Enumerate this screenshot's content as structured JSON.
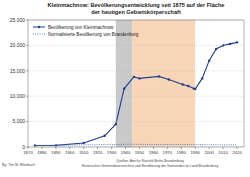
{
  "chart_data": {
    "type": "line",
    "title": "Kleinmachnow: Bevölkerungsentwicklung seit 1875 auf der Fläche",
    "subtitle": "der heutigen Gebietskörperschaft",
    "x": [
      1875,
      1890,
      1910,
      1925,
      1933,
      1939,
      1946,
      1950,
      1964,
      1971,
      1981,
      1985,
      1989,
      1990,
      1995,
      2000,
      2005,
      2010,
      2015,
      2020
    ],
    "series": [
      {
        "name": "Bevölkerung von Kleinmachnow",
        "color": "#1c3f94",
        "marker": "circle",
        "line_style": "solid",
        "values": [
          310,
          320,
          800,
          2200,
          4500,
          11500,
          13800,
          13500,
          13900,
          13300,
          12300,
          12000,
          11500,
          11400,
          13500,
          17000,
          19300,
          20000,
          20300,
          20600
        ]
      },
      {
        "name": "Normalisierte Bevölkerung von Brandenburg",
        "color": "#5a7fc0",
        "marker": "none",
        "line_style": "dotted",
        "values": [
          310,
          350,
          420,
          460,
          480,
          520,
          560,
          520,
          490,
          490,
          490,
          490,
          480,
          470,
          460,
          450,
          440,
          430,
          420,
          420
        ]
      }
    ],
    "periods": [
      {
        "from": 1933,
        "to": 1945,
        "color": "#c9c9c9"
      },
      {
        "from": 1945,
        "to": 1990,
        "color": "#f9d5b8"
      }
    ],
    "xlim": [
      1870,
      2025
    ],
    "xticks": [
      1870,
      1880,
      1890,
      1900,
      1910,
      1920,
      1930,
      1940,
      1950,
      1960,
      1970,
      1980,
      1990,
      2000,
      2010,
      2020
    ],
    "ylim": [
      0,
      25000
    ],
    "yticks": [
      0,
      {
        "value": 5000,
        "label": "5,000"
      },
      {
        "value": 10000,
        "label": "10,000"
      },
      {
        "value": 15000,
        "label": "15,000"
      },
      {
        "value": 20000,
        "label": "20,000"
      },
      {
        "value": 25000,
        "label": "25,000"
      }
    ],
    "grid": true,
    "legend": "upper-left",
    "author": "By: Tim M. Ellerbach",
    "source_lines": [
      "Quellen: Amt für Statistik Berlin-Brandenburg",
      "Historisches Gemeindeverzeichnis und Bevölkerung der Gemeinden im Land Brandenburg"
    ]
  }
}
